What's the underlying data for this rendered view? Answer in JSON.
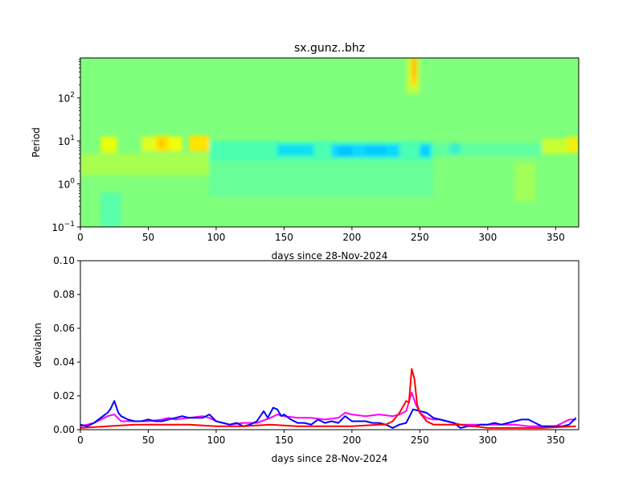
{
  "chart_data": [
    {
      "type": "heatmap",
      "title": "sx.gunz..bhz",
      "xlabel": "days since 28-Nov-2024",
      "ylabel": "Period",
      "xlim": [
        0,
        367
      ],
      "ylim": [
        0.1,
        850
      ],
      "yscale": "log",
      "xticks": [
        "0",
        "50",
        "100",
        "150",
        "200",
        "250",
        "300",
        "350"
      ],
      "xtick_values": [
        0,
        50,
        100,
        150,
        200,
        250,
        300,
        350
      ],
      "yticks": [
        {
          "base": "10",
          "exp": "−1",
          "value": 0.1
        },
        {
          "base": "10",
          "exp": "0",
          "value": 1
        },
        {
          "base": "10",
          "exp": "1",
          "value": 10
        },
        {
          "base": "10",
          "exp": "2",
          "value": 100
        }
      ],
      "background_color": "#80ff7c",
      "patches": [
        {
          "days": [
            0,
            95
          ],
          "log10_period": [
            0.2,
            0.7
          ],
          "color": "#a8ff50"
        },
        {
          "days": [
            15,
            30
          ],
          "log10_period": [
            -1,
            -0.2
          ],
          "color": "#58ffa8"
        },
        {
          "days": [
            15,
            27
          ],
          "log10_period": [
            0.72,
            1.1
          ],
          "color": "#e8ff10"
        },
        {
          "days": [
            45,
            55
          ],
          "log10_period": [
            0.75,
            1.1
          ],
          "color": "#e0ff20"
        },
        {
          "days": [
            55,
            66
          ],
          "log10_period": [
            0.75,
            1.12
          ],
          "color": "#ffe800"
        },
        {
          "days": [
            58,
            62
          ],
          "log10_period": [
            0.85,
            1.05
          ],
          "color": "#ffc000"
        },
        {
          "days": [
            66,
            75
          ],
          "log10_period": [
            0.75,
            1.1
          ],
          "color": "#f0ff10"
        },
        {
          "days": [
            80,
            95
          ],
          "log10_period": [
            0.75,
            1.12
          ],
          "color": "#ffe400"
        },
        {
          "days": [
            95,
            260
          ],
          "log10_period": [
            0.55,
            1.0
          ],
          "color": "#48ffb0"
        },
        {
          "days": [
            95,
            260
          ],
          "log10_period": [
            -0.3,
            0.55
          ],
          "color": "#68ff98"
        },
        {
          "days": [
            145,
            172
          ],
          "log10_period": [
            0.65,
            0.92
          ],
          "color": "#10e0f0"
        },
        {
          "days": [
            185,
            235
          ],
          "log10_period": [
            0.62,
            0.92
          ],
          "color": "#08d8ff"
        },
        {
          "days": [
            190,
            200
          ],
          "log10_period": [
            0.65,
            0.88
          ],
          "color": "#00c4ff"
        },
        {
          "days": [
            210,
            225
          ],
          "log10_period": [
            0.68,
            0.9
          ],
          "color": "#00ccff"
        },
        {
          "days": [
            250,
            258
          ],
          "log10_period": [
            0.62,
            0.92
          ],
          "color": "#00d4ff"
        },
        {
          "days": [
            260,
            340
          ],
          "log10_period": [
            0.65,
            0.95
          ],
          "color": "#60ffa0"
        },
        {
          "days": [
            272,
            280
          ],
          "log10_period": [
            0.7,
            0.95
          ],
          "color": "#38f0d0"
        },
        {
          "days": [
            320,
            335
          ],
          "log10_period": [
            -0.4,
            0.5
          ],
          "color": "#a0ff58"
        },
        {
          "days": [
            340,
            358
          ],
          "log10_period": [
            0.7,
            1.05
          ],
          "color": "#c8ff30"
        },
        {
          "days": [
            358,
            367
          ],
          "log10_period": [
            0.72,
            1.1
          ],
          "color": "#f0f010"
        },
        {
          "days": [
            240,
            250
          ],
          "log10_period": [
            2.1,
            2.93
          ],
          "color": "#c0ff40"
        },
        {
          "days": [
            243,
            248
          ],
          "log10_period": [
            2.3,
            2.93
          ],
          "color": "#ffd800"
        },
        {
          "days": [
            245,
            247
          ],
          "log10_period": [
            2.5,
            2.93
          ],
          "color": "#ffb000"
        }
      ]
    },
    {
      "type": "line",
      "xlabel": "days since 28-Nov-2024",
      "ylabel": "deviation",
      "xlim": [
        0,
        367
      ],
      "ylim": [
        0,
        0.1
      ],
      "xticks": [
        "0",
        "50",
        "100",
        "150",
        "200",
        "250",
        "300",
        "350"
      ],
      "xtick_values": [
        0,
        50,
        100,
        150,
        200,
        250,
        300,
        350
      ],
      "yticks": [
        "0.00",
        "0.02",
        "0.04",
        "0.06",
        "0.08",
        "0.10"
      ],
      "ytick_values": [
        0,
        0.02,
        0.04,
        0.06,
        0.08,
        0.1
      ],
      "series": [
        {
          "name": "magenta",
          "color": "#ff00ff",
          "x": [
            0,
            10,
            20,
            25,
            30,
            40,
            50,
            60,
            65,
            70,
            80,
            90,
            95,
            100,
            110,
            120,
            130,
            140,
            145,
            150,
            160,
            170,
            180,
            190,
            195,
            200,
            210,
            220,
            230,
            235,
            240,
            244,
            247,
            250,
            255,
            260,
            265,
            270,
            275,
            280,
            290,
            300,
            310,
            320,
            330,
            340,
            350,
            355,
            360,
            365
          ],
          "y": [
            0.002,
            0.004,
            0.008,
            0.009,
            0.005,
            0.005,
            0.005,
            0.006,
            0.007,
            0.006,
            0.007,
            0.008,
            0.007,
            0.005,
            0.003,
            0.004,
            0.004,
            0.007,
            0.009,
            0.008,
            0.007,
            0.007,
            0.006,
            0.007,
            0.01,
            0.009,
            0.008,
            0.009,
            0.008,
            0.009,
            0.011,
            0.022,
            0.015,
            0.01,
            0.007,
            0.006,
            0.006,
            0.005,
            0.004,
            0.003,
            0.003,
            0.003,
            0.003,
            0.003,
            0.002,
            0.002,
            0.002,
            0.004,
            0.006,
            0.006
          ]
        },
        {
          "name": "blue",
          "color": "#0000ff",
          "x": [
            0,
            5,
            10,
            15,
            20,
            22,
            25,
            28,
            30,
            35,
            40,
            45,
            50,
            55,
            60,
            65,
            70,
            75,
            80,
            85,
            90,
            95,
            100,
            105,
            110,
            115,
            120,
            125,
            130,
            135,
            138,
            142,
            145,
            148,
            150,
            155,
            160,
            165,
            170,
            175,
            180,
            185,
            190,
            195,
            200,
            205,
            210,
            215,
            220,
            225,
            230,
            235,
            240,
            245,
            250,
            255,
            260,
            265,
            270,
            275,
            280,
            285,
            290,
            295,
            300,
            305,
            310,
            315,
            320,
            325,
            330,
            335,
            340,
            345,
            350,
            355,
            360,
            365
          ],
          "y": [
            0.003,
            0.002,
            0.004,
            0.007,
            0.01,
            0.012,
            0.017,
            0.01,
            0.008,
            0.006,
            0.005,
            0.005,
            0.006,
            0.005,
            0.005,
            0.006,
            0.007,
            0.008,
            0.007,
            0.007,
            0.007,
            0.009,
            0.005,
            0.004,
            0.003,
            0.004,
            0.002,
            0.003,
            0.005,
            0.011,
            0.007,
            0.013,
            0.012,
            0.008,
            0.009,
            0.006,
            0.004,
            0.004,
            0.003,
            0.006,
            0.004,
            0.005,
            0.004,
            0.008,
            0.005,
            0.005,
            0.005,
            0.004,
            0.004,
            0.003,
            0.001,
            0.003,
            0.004,
            0.012,
            0.011,
            0.01,
            0.007,
            0.006,
            0.005,
            0.004,
            0.001,
            0.002,
            0.002,
            0.003,
            0.003,
            0.004,
            0.003,
            0.004,
            0.005,
            0.006,
            0.006,
            0.004,
            0.002,
            0.002,
            0.002,
            0.002,
            0.003,
            0.007
          ]
        },
        {
          "name": "red",
          "color": "#ff0000",
          "x": [
            0,
            20,
            40,
            60,
            80,
            100,
            120,
            140,
            160,
            180,
            200,
            220,
            225,
            230,
            235,
            240,
            242,
            244,
            246,
            248,
            250,
            255,
            260,
            270,
            280,
            290,
            300,
            320,
            340,
            365
          ],
          "y": [
            0.001,
            0.002,
            0.003,
            0.003,
            0.003,
            0.002,
            0.002,
            0.003,
            0.002,
            0.002,
            0.002,
            0.003,
            0.003,
            0.005,
            0.01,
            0.017,
            0.016,
            0.036,
            0.03,
            0.015,
            0.01,
            0.005,
            0.003,
            0.003,
            0.003,
            0.002,
            0.001,
            0.001,
            0.001,
            0.002
          ]
        }
      ]
    }
  ]
}
